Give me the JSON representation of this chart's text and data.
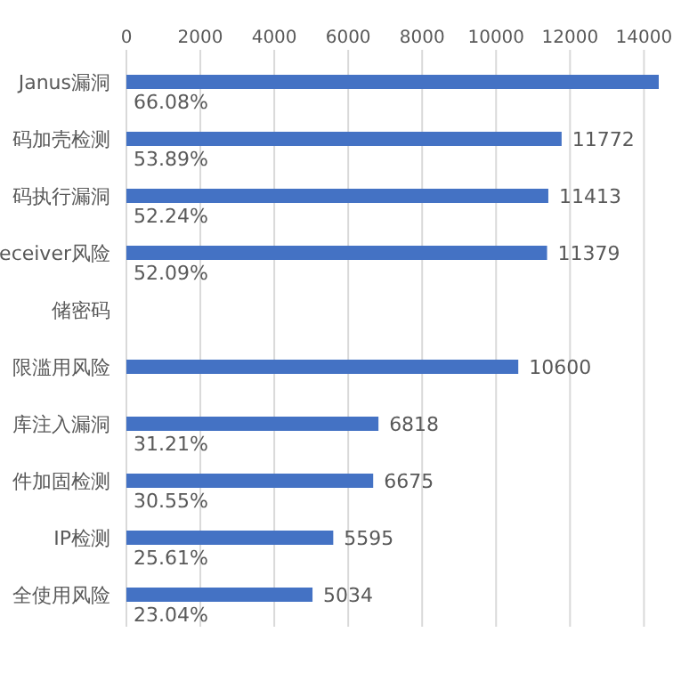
{
  "chart_data": {
    "type": "bar",
    "orientation": "horizontal",
    "categories": [
      "Janus漏洞",
      "码加壳检测",
      "码执行漏洞",
      "eceiver风险",
      "储密码",
      "限滥用风险",
      "库注入漏洞",
      "件加固检测",
      "IP检测",
      "全使用风险"
    ],
    "values": [
      14400,
      11772,
      11413,
      11379,
      null,
      10600,
      6818,
      6675,
      5595,
      5034
    ],
    "value_labels": [
      null,
      "11772",
      "11413",
      "11379",
      null,
      "10600",
      "6818",
      "6675",
      "5595",
      "5034"
    ],
    "color": "#4472c4",
    "xlim": [
      0,
      14400
    ],
    "xticks": [
      0,
      2000,
      4000,
      6000,
      8000,
      10000,
      12000,
      14000
    ],
    "grid": "x",
    "annotations": [
      {
        "text": "66.08%",
        "y": "Janus漏洞"
      },
      {
        "text": "53.89%",
        "y": "码加壳检测"
      },
      {
        "text": "52.24%",
        "y": "码执行漏洞"
      },
      {
        "text": "52.09%",
        "y": "eceiver风险"
      },
      {
        "text": "31.21%",
        "y": "库注入漏洞"
      },
      {
        "text": "30.55%",
        "y": "件加固检测"
      },
      {
        "text": "25.61%",
        "y": "IP检测"
      },
      {
        "text": "23.04%",
        "y": "全使用风险"
      }
    ]
  }
}
